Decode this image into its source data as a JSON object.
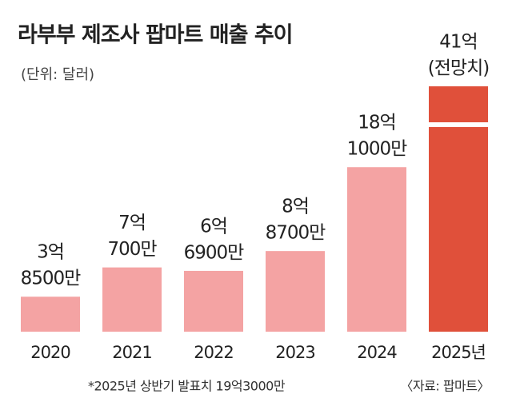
{
  "chart_data": {
    "type": "bar",
    "title": "라부부 제조사 팝마트 매출 추이",
    "subtitle": "(단위: 달러)",
    "categories": [
      "2020",
      "2021",
      "2022",
      "2023",
      "2024",
      "2025년"
    ],
    "values": [
      385000000,
      707000000,
      669000000,
      887000000,
      1810000000,
      4100000000
    ],
    "value_labels": [
      [
        "3억",
        "8500만"
      ],
      [
        "7억",
        "700만"
      ],
      [
        "6억",
        "6900만"
      ],
      [
        "8억",
        "8700만"
      ],
      [
        "18억",
        "1000만"
      ],
      [
        "41억",
        "(전망치)"
      ]
    ],
    "colors": [
      "#f4a3a3",
      "#f4a3a3",
      "#f4a3a3",
      "#f4a3a3",
      "#f4a3a3",
      "#e0503a"
    ],
    "ylim": [
      0,
      2700000000
    ],
    "axis_break": true,
    "note": "*2025년 상반기 발표치 19억3000만",
    "source": "〈자료: 팝마트〉"
  }
}
